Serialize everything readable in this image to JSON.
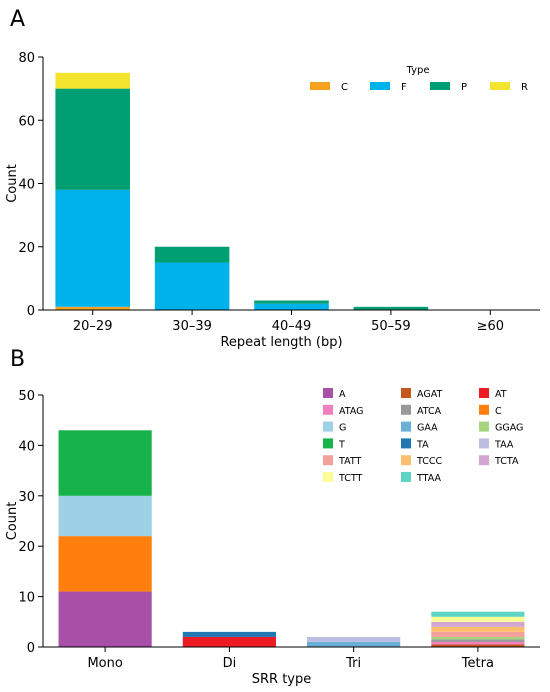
{
  "chart_data": [
    {
      "panel_label": "A",
      "type": "bar",
      "stacked": true,
      "categories": [
        "20–29",
        "30–39",
        "40–49",
        "50–59",
        "≥60"
      ],
      "series": [
        {
          "name": "C",
          "color": "#f4a21f",
          "values": [
            1,
            0,
            0,
            0,
            0
          ]
        },
        {
          "name": "F",
          "color": "#00b2ec",
          "values": [
            37,
            15,
            2,
            0,
            0
          ]
        },
        {
          "name": "P",
          "color": "#009e73",
          "values": [
            32,
            5,
            1,
            1,
            0
          ]
        },
        {
          "name": "R",
          "color": "#f3e42f",
          "values": [
            5,
            0,
            0,
            0,
            0
          ]
        }
      ],
      "xlabel": "Repeat length (bp)",
      "ylabel": "Count",
      "ylim": [
        0,
        80
      ],
      "yticks": [
        0,
        20,
        40,
        60,
        80
      ],
      "legend_title": "Type",
      "legend_position": "top-right",
      "grid": false
    },
    {
      "panel_label": "B",
      "type": "bar",
      "stacked": true,
      "categories": [
        "Mono",
        "Di",
        "Tri",
        "Tetra"
      ],
      "series": [
        {
          "name": "A",
          "color": "#a84fa8",
          "values": [
            11,
            0,
            0,
            0
          ]
        },
        {
          "name": "AGAT",
          "color": "#c4581f",
          "values": [
            0,
            0,
            0,
            0.5
          ]
        },
        {
          "name": "AT",
          "color": "#ed1c24",
          "values": [
            0,
            2,
            0,
            0
          ]
        },
        {
          "name": "ATAG",
          "color": "#f47fbf",
          "values": [
            0,
            0,
            0,
            0.5
          ]
        },
        {
          "name": "ATCA",
          "color": "#999999",
          "values": [
            0,
            0,
            0,
            0.5
          ]
        },
        {
          "name": "C",
          "color": "#ff7f0e",
          "values": [
            11,
            0,
            0,
            0
          ]
        },
        {
          "name": "G",
          "color": "#9ed0e6",
          "values": [
            8,
            0,
            0,
            0
          ]
        },
        {
          "name": "GAA",
          "color": "#6baed6",
          "values": [
            0,
            0,
            1,
            0
          ]
        },
        {
          "name": "GGAG",
          "color": "#a6d47f",
          "values": [
            0,
            0,
            0,
            0.5
          ]
        },
        {
          "name": "T",
          "color": "#18b24a",
          "values": [
            13,
            0,
            0,
            0
          ]
        },
        {
          "name": "TA",
          "color": "#1f77b4",
          "values": [
            0,
            1,
            0,
            0
          ]
        },
        {
          "name": "TAA",
          "color": "#bcbde0",
          "values": [
            0,
            0,
            1,
            0
          ]
        },
        {
          "name": "TATT",
          "color": "#f4a09b",
          "values": [
            0,
            0,
            0,
            1
          ]
        },
        {
          "name": "TCCC",
          "color": "#fdbf6f",
          "values": [
            0,
            0,
            0,
            1
          ]
        },
        {
          "name": "TCTA",
          "color": "#d4a6d4",
          "values": [
            0,
            0,
            0,
            1
          ]
        },
        {
          "name": "TCTT",
          "color": "#fdfd96",
          "values": [
            0,
            0,
            0,
            1
          ]
        },
        {
          "name": "TTAA",
          "color": "#5fd3c4",
          "values": [
            0,
            0,
            0,
            1
          ]
        }
      ],
      "xlabel": "SRR type",
      "ylabel": "Count",
      "ylim": [
        0,
        50
      ],
      "yticks": [
        0,
        10,
        20,
        30,
        40,
        50
      ],
      "legend_position": "top-right",
      "grid": false
    }
  ]
}
